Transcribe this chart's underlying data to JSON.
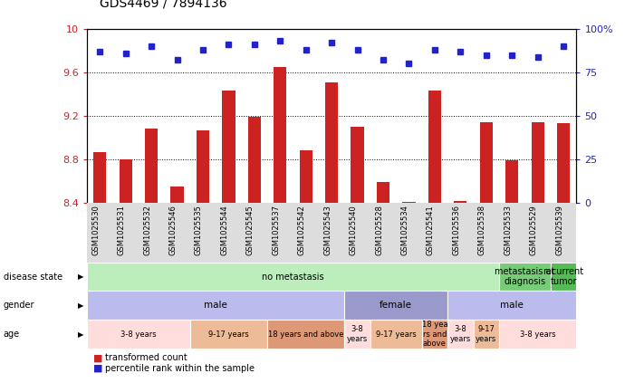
{
  "title": "GDS4469 / 7894136",
  "samples": [
    "GSM1025530",
    "GSM1025531",
    "GSM1025532",
    "GSM1025546",
    "GSM1025535",
    "GSM1025544",
    "GSM1025545",
    "GSM1025537",
    "GSM1025542",
    "GSM1025543",
    "GSM1025540",
    "GSM1025528",
    "GSM1025534",
    "GSM1025541",
    "GSM1025536",
    "GSM1025538",
    "GSM1025533",
    "GSM1025529",
    "GSM1025539"
  ],
  "bar_values": [
    8.87,
    8.8,
    9.08,
    8.55,
    9.07,
    9.43,
    9.19,
    9.65,
    8.88,
    9.51,
    9.1,
    8.59,
    8.41,
    9.43,
    8.42,
    9.14,
    8.79,
    9.14,
    9.13
  ],
  "dot_values": [
    87,
    86,
    90,
    82,
    88,
    91,
    91,
    93,
    88,
    92,
    88,
    82,
    80,
    88,
    87,
    85,
    85,
    84,
    90
  ],
  "ylim_left": [
    8.4,
    10.0
  ],
  "ylim_right": [
    0,
    100
  ],
  "yticks_left": [
    8.4,
    8.8,
    9.2,
    9.6,
    10.0
  ],
  "ytick_labels_left": [
    "8.4",
    "8.8",
    "9.2",
    "9.6",
    "10"
  ],
  "yticks_right": [
    0,
    25,
    50,
    75,
    100
  ],
  "ytick_labels_right": [
    "0",
    "25",
    "50",
    "75",
    "100%"
  ],
  "bar_color": "#CC2222",
  "dot_color": "#2222CC",
  "grid_lines": [
    8.8,
    9.2,
    9.6
  ],
  "disease_state_blocks": [
    {
      "label": "no metastasis",
      "start": 0,
      "end": 16,
      "color": "#BBEEBB"
    },
    {
      "label": "metastasis at\ndiagnosis",
      "start": 16,
      "end": 18,
      "color": "#77CC77"
    },
    {
      "label": "recurrent\ntumor",
      "start": 18,
      "end": 19,
      "color": "#55BB55"
    }
  ],
  "gender_blocks": [
    {
      "label": "male",
      "start": 0,
      "end": 10,
      "color": "#BBBBEE"
    },
    {
      "label": "female",
      "start": 10,
      "end": 14,
      "color": "#9999CC"
    },
    {
      "label": "male",
      "start": 14,
      "end": 19,
      "color": "#BBBBEE"
    }
  ],
  "age_blocks": [
    {
      "label": "3-8 years",
      "start": 0,
      "end": 4,
      "color": "#FFDDDD"
    },
    {
      "label": "9-17 years",
      "start": 4,
      "end": 7,
      "color": "#EEBB99"
    },
    {
      "label": "18 years and above",
      "start": 7,
      "end": 10,
      "color": "#DD9977"
    },
    {
      "label": "3-8\nyears",
      "start": 10,
      "end": 11,
      "color": "#FFDDDD"
    },
    {
      "label": "9-17 years",
      "start": 11,
      "end": 13,
      "color": "#EEBB99"
    },
    {
      "label": "18 yea\nrs and\nabove",
      "start": 13,
      "end": 14,
      "color": "#DD9977"
    },
    {
      "label": "3-8\nyears",
      "start": 14,
      "end": 15,
      "color": "#FFDDDD"
    },
    {
      "label": "9-17\nyears",
      "start": 15,
      "end": 16,
      "color": "#EEBB99"
    },
    {
      "label": "3-8 years",
      "start": 16,
      "end": 19,
      "color": "#FFDDDD"
    }
  ],
  "row_labels": [
    "disease state",
    "gender",
    "age"
  ],
  "xlim": [
    -0.5,
    18.5
  ],
  "bar_width": 0.5,
  "xtick_bg_color": "#DDDDDD",
  "legend_red_label": "transformed count",
  "legend_blue_label": "percentile rank within the sample"
}
